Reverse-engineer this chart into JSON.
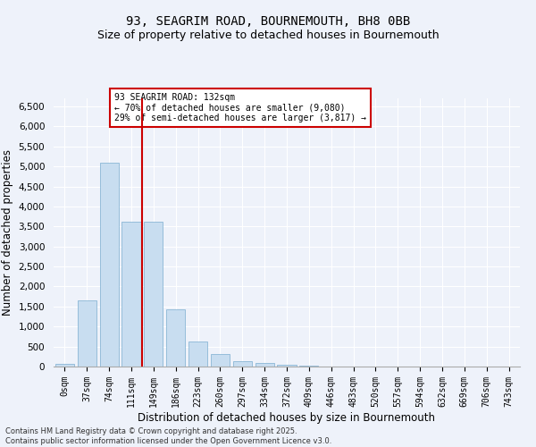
{
  "title_line1": "93, SEAGRIM ROAD, BOURNEMOUTH, BH8 0BB",
  "title_line2": "Size of property relative to detached houses in Bournemouth",
  "xlabel": "Distribution of detached houses by size in Bournemouth",
  "ylabel": "Number of detached properties",
  "bar_color": "#c8ddf0",
  "bar_edge_color": "#7aadd0",
  "background_color": "#eef2fa",
  "grid_color": "#ffffff",
  "categories": [
    "0sqm",
    "37sqm",
    "74sqm",
    "111sqm",
    "149sqm",
    "186sqm",
    "223sqm",
    "260sqm",
    "297sqm",
    "334sqm",
    "372sqm",
    "409sqm",
    "446sqm",
    "483sqm",
    "520sqm",
    "557sqm",
    "594sqm",
    "632sqm",
    "669sqm",
    "706sqm",
    "743sqm"
  ],
  "values": [
    75,
    1650,
    5100,
    3620,
    3620,
    1420,
    620,
    310,
    130,
    80,
    40,
    15,
    5,
    2,
    1,
    0,
    0,
    0,
    0,
    0,
    0
  ],
  "ylim": [
    0,
    6700
  ],
  "yticks": [
    0,
    500,
    1000,
    1500,
    2000,
    2500,
    3000,
    3500,
    4000,
    4500,
    5000,
    5500,
    6000,
    6500
  ],
  "vline_color": "#cc0000",
  "vline_position": 3.48,
  "annotation_title": "93 SEAGRIM ROAD: 132sqm",
  "annotation_line1": "← 70% of detached houses are smaller (9,080)",
  "annotation_line2": "29% of semi-detached houses are larger (3,817) →",
  "annotation_box_edgecolor": "#cc0000",
  "footer_line1": "Contains HM Land Registry data © Crown copyright and database right 2025.",
  "footer_line2": "Contains public sector information licensed under the Open Government Licence v3.0.",
  "title_fontsize": 10,
  "subtitle_fontsize": 9,
  "axis_label_fontsize": 8.5,
  "tick_fontsize": 7.5,
  "ann_fontsize": 7,
  "footer_fontsize": 6
}
